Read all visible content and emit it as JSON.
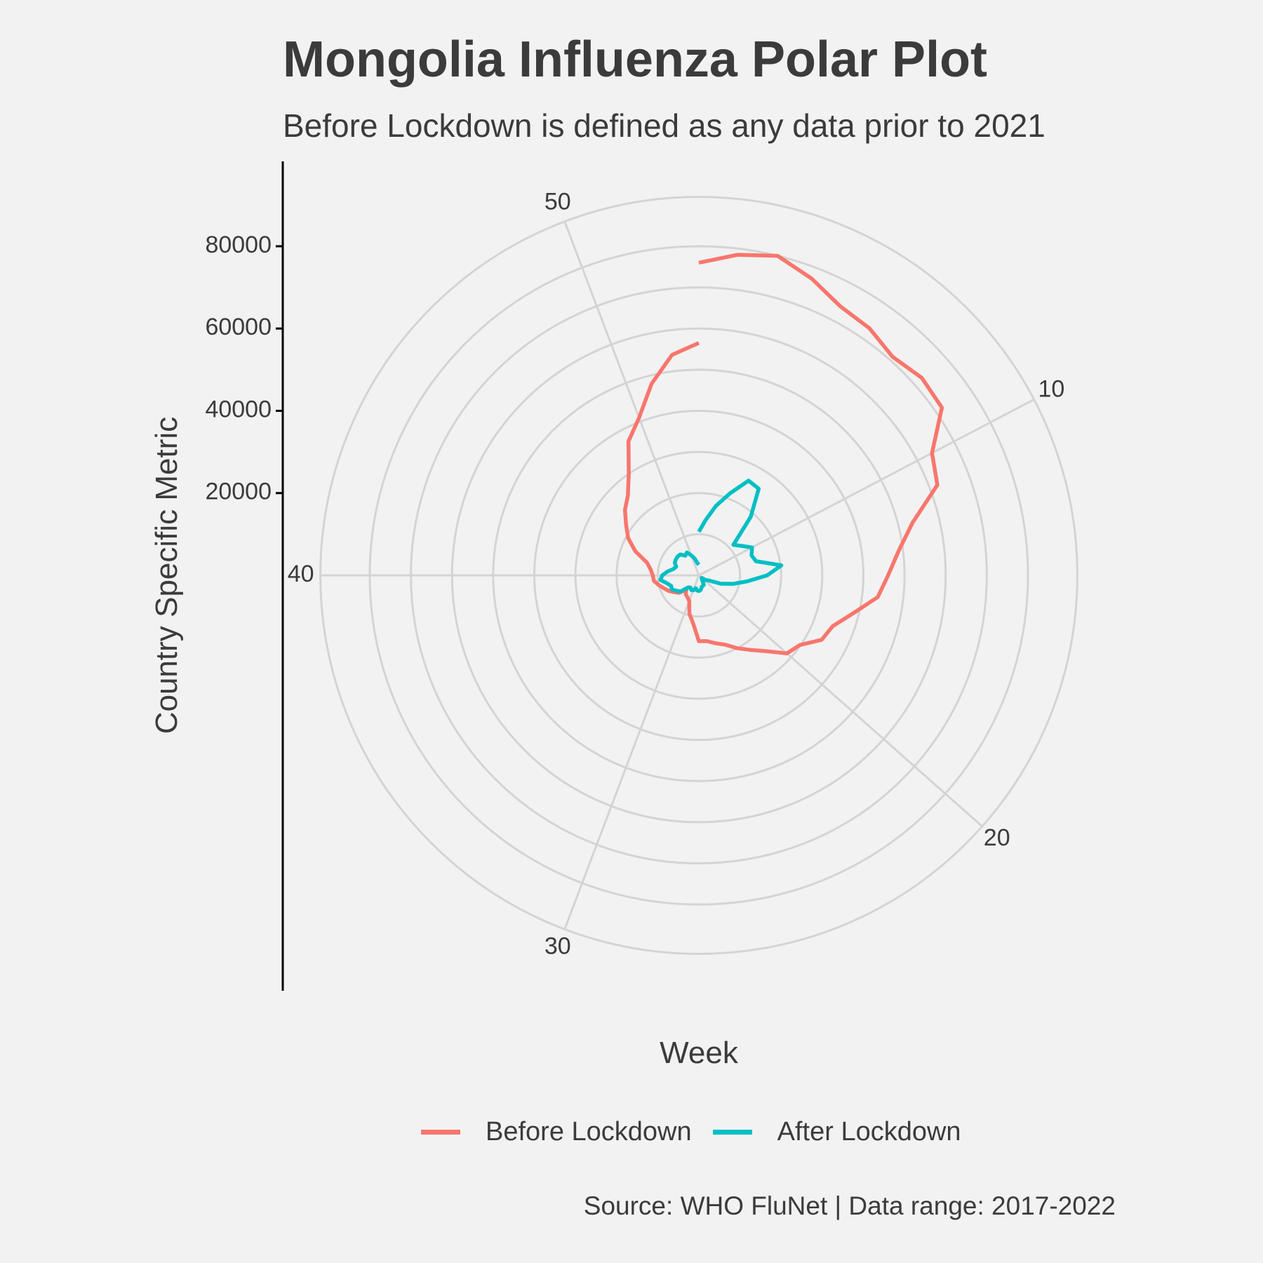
{
  "chart_data": {
    "type": "line",
    "coordinate_system": "polar",
    "title": "Mongolia Influenza Polar Plot",
    "subtitle": "Before Lockdown is defined as any data prior to 2021",
    "xlabel": "Week",
    "ylabel": "Country Specific Metric",
    "caption": "Source: WHO FluNet | Data range: 2017-2022",
    "theta_range": [
      1,
      53
    ],
    "theta_ticks": [
      10,
      20,
      30,
      40,
      50
    ],
    "r_ticks": [
      20000,
      40000,
      60000,
      80000
    ],
    "r_range": [
      0,
      92000
    ],
    "grid": true,
    "legend_position": "bottom",
    "colors": {
      "before": "#f8766d",
      "after": "#00bfc4",
      "grid": "#d4d4d4",
      "background": "#f2f2f2"
    },
    "series": [
      {
        "name": "Before Lockdown",
        "x": [
          1,
          2,
          3,
          4,
          5,
          6,
          7,
          8,
          9,
          10,
          11,
          12,
          13,
          14,
          15,
          16,
          17,
          18,
          19,
          20,
          21,
          22,
          23,
          24,
          25,
          26,
          27,
          28,
          29,
          30,
          31,
          32,
          33,
          34,
          35,
          36,
          37,
          38,
          39,
          40,
          41,
          42,
          43,
          44,
          45,
          46,
          47,
          48,
          49,
          50,
          51,
          52,
          53
        ],
        "values": [
          76000,
          78500,
          80000,
          77200,
          73900,
          73000,
          71000,
          72400,
          71800,
          64000,
          62000,
          53500,
          48900,
          46000,
          43800,
          38600,
          34800,
          33700,
          29800,
          28600,
          24600,
          22000,
          20000,
          18000,
          17000,
          16100,
          16000,
          11700,
          9600,
          6600,
          6000,
          5600,
          4600,
          6400,
          7200,
          8200,
          9000,
          10000,
          11000,
          11200,
          11800,
          13000,
          16500,
          19400,
          21500,
          24000,
          26000,
          30000,
          36800,
          41000,
          48000,
          54000,
          56500
        ]
      },
      {
        "name": "After Lockdown",
        "x": [
          1,
          2,
          3,
          4,
          5,
          6,
          7,
          8,
          9,
          10,
          11,
          12,
          13,
          14,
          15,
          16,
          17,
          18,
          19,
          20,
          21,
          22,
          23,
          24,
          25,
          26,
          27,
          28,
          29,
          30,
          31,
          32,
          33,
          34,
          35,
          36,
          37,
          38,
          39,
          40,
          41,
          42,
          43,
          44,
          45,
          46,
          47,
          48,
          49,
          50,
          51,
          52,
          53
        ],
        "values": [
          10600,
          13500,
          17400,
          21300,
          26000,
          25600,
          19000,
          11200,
          12600,
          14600,
          13700,
          14300,
          20200,
          16600,
          11900,
          8600,
          5700,
          2600,
          2000,
          900,
          1100,
          1400,
          2600,
          2700,
          2900,
          3600,
          3800,
          3700,
          3200,
          3900,
          4000,
          3600,
          3900,
          5900,
          6600,
          7400,
          7200,
          8000,
          9400,
          8900,
          7700,
          6400,
          5900,
          6600,
          6800,
          6900,
          6800,
          5800,
          6300,
          5200,
          4200,
          3000,
          2600
        ]
      }
    ]
  },
  "legend": {
    "before": "Before Lockdown",
    "after": "After Lockdown"
  }
}
